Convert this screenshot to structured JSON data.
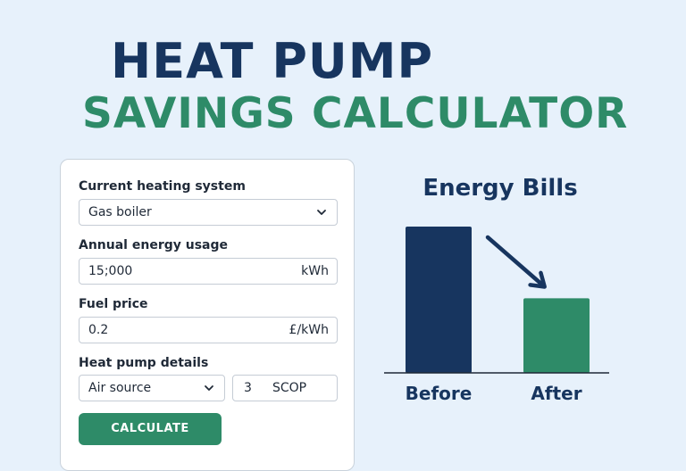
{
  "header": {
    "title_line1": "HEAT PUMP",
    "title_line2": "SAVINGS CALCULATOR"
  },
  "form": {
    "current_system": {
      "label": "Current heating system",
      "value": "Gas boiler",
      "icon": "chevron-down-icon"
    },
    "annual_usage": {
      "label": "Annual energy usage",
      "value": "15;000",
      "unit": "kWh"
    },
    "fuel_price": {
      "label": "Fuel price",
      "value": "0.2",
      "unit": "£/kWh"
    },
    "heat_pump": {
      "label": "Heat pump details",
      "type_value": "Air source",
      "scop_value": "3",
      "scop_unit": "SCOP"
    },
    "calculate_label": "CALCULATE"
  },
  "chart_data": {
    "type": "bar",
    "title": "Energy Bills",
    "categories": [
      "Before",
      "After"
    ],
    "values": [
      100,
      51
    ],
    "colors": [
      "#17355f",
      "#2e8b68"
    ],
    "annotation": "downward arrow from Before to After",
    "xlabel": "",
    "ylabel": ""
  },
  "colors": {
    "background": "#e7f1fb",
    "navy": "#17355f",
    "green": "#2e8b68"
  }
}
